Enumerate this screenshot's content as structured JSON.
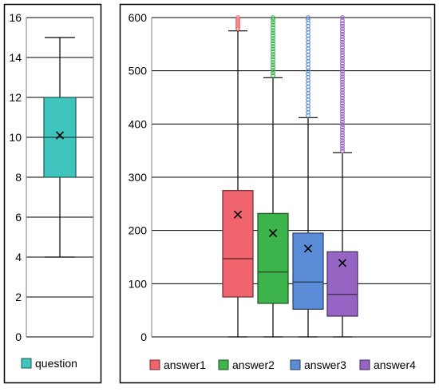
{
  "chart_data": [
    {
      "type": "box",
      "ylim": [
        0,
        16
      ],
      "yticks": [
        0,
        2,
        4,
        6,
        8,
        10,
        12,
        14,
        16
      ],
      "grid": true,
      "legend": "bottom",
      "series": [
        {
          "name": "question",
          "color": "#40C4BE",
          "min": 4,
          "q1": 8,
          "median": 10,
          "q3": 12,
          "max": 15,
          "mean": 10.1,
          "outliers": []
        }
      ]
    },
    {
      "type": "box",
      "ylim": [
        0,
        600
      ],
      "yticks": [
        0,
        100,
        200,
        300,
        400,
        500,
        600
      ],
      "grid": true,
      "legend": "bottom",
      "series": [
        {
          "name": "answer1",
          "color": "#F0646E",
          "min": 0,
          "q1": 75,
          "median": 147,
          "q3": 275,
          "max": 575,
          "mean": 230,
          "outliers": [
            579,
            582,
            585,
            588,
            591,
            594,
            597,
            600
          ]
        },
        {
          "name": "answer2",
          "color": "#3CB44B",
          "min": 0,
          "q1": 63,
          "median": 122,
          "q3": 232,
          "max": 487,
          "mean": 195,
          "outliers": [
            491,
            496,
            501,
            506,
            511,
            516,
            521,
            526,
            531,
            536,
            541,
            546,
            551,
            556,
            561,
            566,
            571,
            576,
            581,
            586,
            591,
            596,
            600
          ]
        },
        {
          "name": "answer3",
          "color": "#5A8CD7",
          "min": 0,
          "q1": 52,
          "median": 103,
          "q3": 195,
          "max": 412,
          "mean": 166,
          "outliers": [
            416,
            422,
            428,
            434,
            440,
            446,
            452,
            458,
            464,
            470,
            476,
            482,
            488,
            494,
            500,
            506,
            512,
            518,
            524,
            530,
            536,
            542,
            548,
            554,
            560,
            566,
            572,
            578,
            584,
            590,
            596,
            600
          ]
        },
        {
          "name": "answer4",
          "color": "#9664C3",
          "min": 0,
          "q1": 39,
          "median": 80,
          "q3": 160,
          "max": 346,
          "mean": 139,
          "outliers": [
            349,
            354,
            359,
            364,
            369,
            374,
            379,
            384,
            389,
            394,
            399,
            404,
            409,
            414,
            419,
            424,
            429,
            434,
            439,
            444,
            449,
            454,
            459,
            464,
            469,
            474,
            479,
            484,
            489,
            494,
            499,
            504,
            509,
            514,
            519,
            524,
            529,
            534,
            539,
            544,
            549,
            554,
            559,
            564,
            569,
            574,
            579,
            584,
            589,
            594,
            600
          ]
        }
      ]
    }
  ]
}
